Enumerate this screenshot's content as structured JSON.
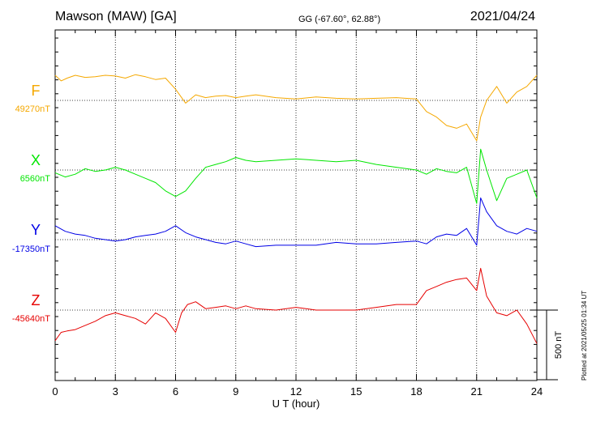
{
  "header": {
    "station": "Mawson (MAW)  [GA]",
    "coords": "GG (-67.60°,  62.88°)",
    "date": "2021/04/24"
  },
  "plotted_note": "Plotted at 2021/05/25 01:34 UT",
  "chart_data": {
    "type": "line",
    "xlabel": "U T (hour)",
    "x_ticks": [
      "0",
      "3",
      "6",
      "9",
      "12",
      "15",
      "18",
      "21",
      "24"
    ],
    "xlim": [
      0,
      24
    ],
    "scale_bar_label": "500 nT",
    "grid": true,
    "series": [
      {
        "name": "F",
        "baseline": "49270nT",
        "color": "#f5a800",
        "x": [
          0,
          0.3,
          0.6,
          1,
          1.5,
          2,
          2.5,
          3,
          3.5,
          4,
          4.5,
          5,
          5.5,
          6,
          6.5,
          7,
          7.5,
          8,
          8.5,
          9,
          9.5,
          10,
          11,
          12,
          13,
          14,
          15,
          16,
          17,
          18,
          18.5,
          19,
          19.5,
          20,
          20.5,
          21,
          21.2,
          21.5,
          22,
          22.5,
          23,
          23.5,
          24
        ],
        "y": [
          180,
          140,
          160,
          180,
          165,
          170,
          180,
          175,
          160,
          185,
          170,
          150,
          160,
          80,
          -20,
          40,
          20,
          30,
          35,
          20,
          30,
          40,
          20,
          10,
          25,
          15,
          10,
          15,
          20,
          10,
          -80,
          -120,
          -180,
          -200,
          -170,
          -290,
          -120,
          0,
          100,
          -20,
          60,
          100,
          180
        ]
      },
      {
        "name": "X",
        "baseline": "6560nT",
        "color": "#00e600",
        "x": [
          0,
          0.5,
          1,
          1.5,
          2,
          2.5,
          3,
          3.5,
          4,
          4.5,
          5,
          5.5,
          6,
          6.5,
          7,
          7.5,
          8,
          8.5,
          9,
          9.5,
          10,
          11,
          12,
          13,
          14,
          15,
          16,
          17,
          18,
          18.5,
          19,
          19.5,
          20,
          20.5,
          21,
          21.2,
          21.5,
          22,
          22.5,
          23,
          23.5,
          24
        ],
        "y": [
          -20,
          -50,
          -30,
          10,
          -10,
          0,
          20,
          0,
          -30,
          -60,
          -90,
          -150,
          -190,
          -150,
          -60,
          20,
          40,
          60,
          90,
          70,
          60,
          70,
          80,
          70,
          60,
          70,
          40,
          20,
          0,
          -30,
          10,
          -10,
          -20,
          20,
          -240,
          150,
          0,
          -220,
          -60,
          -30,
          0,
          -200
        ]
      },
      {
        "name": "Y",
        "baseline": "-17350nT",
        "color": "#0000e6",
        "x": [
          0,
          0.5,
          1,
          1.5,
          2,
          2.5,
          3,
          3.5,
          4,
          4.5,
          5,
          5.5,
          6,
          6.5,
          7,
          7.5,
          8,
          8.5,
          9,
          9.5,
          10,
          11,
          12,
          13,
          14,
          15,
          16,
          17,
          18,
          18.5,
          19,
          19.5,
          20,
          20.5,
          21,
          21.2,
          21.5,
          22,
          22.5,
          23,
          23.5,
          24
        ],
        "y": [
          100,
          60,
          40,
          30,
          10,
          0,
          -10,
          0,
          20,
          30,
          40,
          60,
          100,
          50,
          20,
          0,
          -20,
          -30,
          -10,
          -30,
          -50,
          -40,
          -40,
          -40,
          -20,
          -30,
          -30,
          -20,
          -10,
          -30,
          20,
          40,
          30,
          80,
          -40,
          300,
          200,
          100,
          60,
          40,
          80,
          60
        ]
      },
      {
        "name": "Z",
        "baseline": "-45640nT",
        "color": "#e60000",
        "x": [
          0,
          0.3,
          0.6,
          1,
          1.5,
          2,
          2.5,
          3,
          3.5,
          4,
          4.5,
          5,
          5.5,
          6,
          6.3,
          6.6,
          7,
          7.5,
          8,
          8.5,
          9,
          9.5,
          10,
          11,
          12,
          13,
          14,
          15,
          16,
          17,
          18,
          18.5,
          19,
          19.5,
          20,
          20.5,
          21,
          21.2,
          21.5,
          22,
          22.5,
          23,
          23.5,
          24
        ],
        "y": [
          -220,
          -160,
          -150,
          -140,
          -110,
          -80,
          -40,
          -20,
          -40,
          -60,
          -100,
          -20,
          -60,
          -160,
          -20,
          40,
          60,
          10,
          20,
          30,
          10,
          30,
          10,
          0,
          20,
          0,
          0,
          0,
          20,
          40,
          40,
          140,
          170,
          200,
          220,
          230,
          140,
          300,
          100,
          -20,
          -40,
          0,
          -100,
          -240
        ]
      }
    ]
  }
}
